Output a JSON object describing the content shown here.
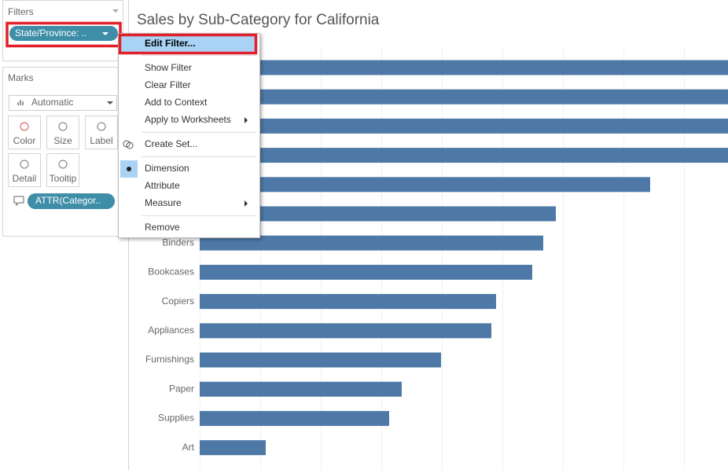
{
  "filters": {
    "title": "Filters",
    "pill": "State/Province: .."
  },
  "marks": {
    "title": "Marks",
    "type": "Automatic",
    "buttons": [
      "Color",
      "Size",
      "Label",
      "Detail",
      "Tooltip"
    ],
    "pill": "ATTR(Categor.."
  },
  "context_menu": {
    "items": [
      "Edit Filter...",
      "Show Filter",
      "Clear Filter",
      "Add to Context",
      "Apply to Worksheets",
      "Create Set...",
      "Dimension",
      "Attribute",
      "Measure",
      "Remove"
    ]
  },
  "chart_data": {
    "type": "bar",
    "title": "Sales by Sub-Category for California",
    "categories": [
      null,
      null,
      null,
      null,
      null,
      null,
      "Binders",
      "Bookcases",
      "Copiers",
      "Appliances",
      "Furnishings",
      "Paper",
      "Supplies",
      "Art"
    ],
    "values": [
      700,
      690,
      685,
      680,
      573,
      453,
      437,
      423,
      377,
      371,
      307,
      257,
      241,
      84
    ],
    "color": "#4e79a7",
    "xlim": [
      0,
      672
    ]
  }
}
